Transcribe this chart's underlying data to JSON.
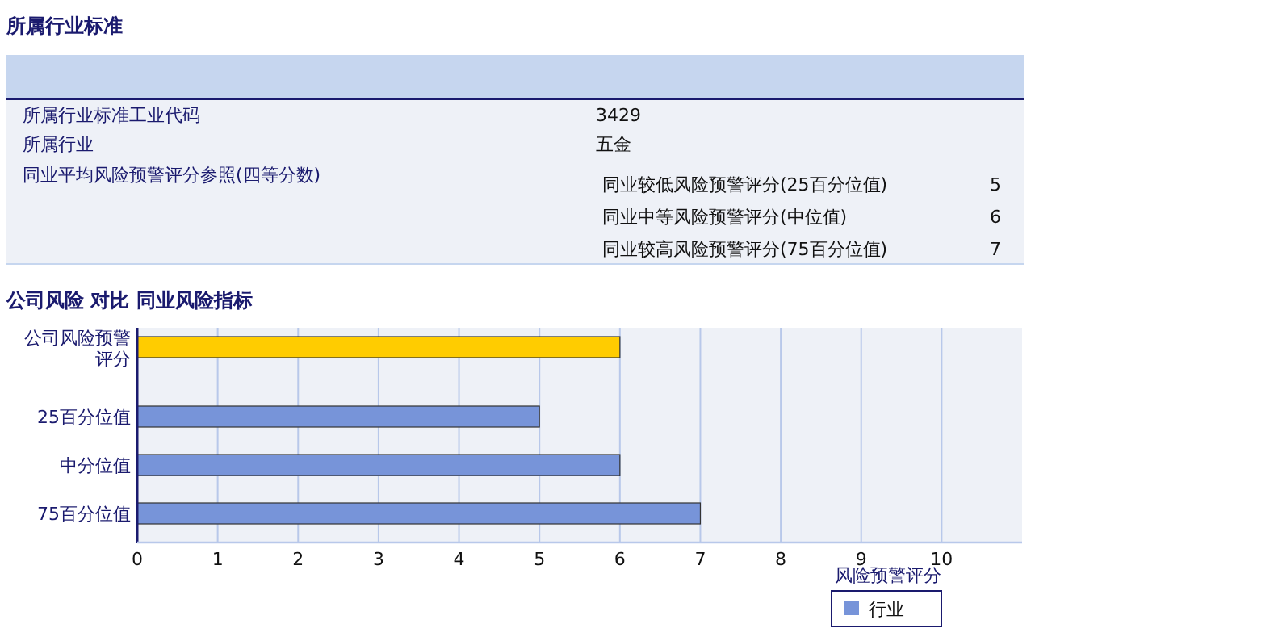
{
  "chart_data": [
    {
      "type": "other",
      "title": "所属行业标准",
      "annotations": [
        "所属行业标准工业代码",
        "3429",
        "所属行业",
        "五金",
        "同业平均风险预警评分参照(四等分数)",
        "同业较低风险预警评分(25百分位值)",
        "5",
        "同业中等风险预警评分(中位值)",
        "6",
        "同业较高风险预警评分(75百分位值)",
        "7"
      ]
    },
    {
      "type": "bar",
      "orientation": "horizontal",
      "title": "公司风险  对比  同业风险指标",
      "xlabel": "风险预警评分",
      "categories": [
        "公司风险预警评分",
        "25百分位值",
        "中分位值",
        "75百分位值"
      ],
      "series": [
        {
          "color": "#ffcc00",
          "values": [
            6,
            null,
            null,
            null
          ]
        },
        {
          "name": "行业",
          "color": "#7794d9",
          "values": [
            null,
            5,
            6,
            7
          ]
        }
      ],
      "xlim": [
        0,
        11
      ],
      "xticks": [
        0,
        1,
        2,
        3,
        4,
        5,
        6,
        7,
        8,
        9,
        10
      ],
      "grid": "x",
      "legend": "bottom right"
    }
  ]
}
